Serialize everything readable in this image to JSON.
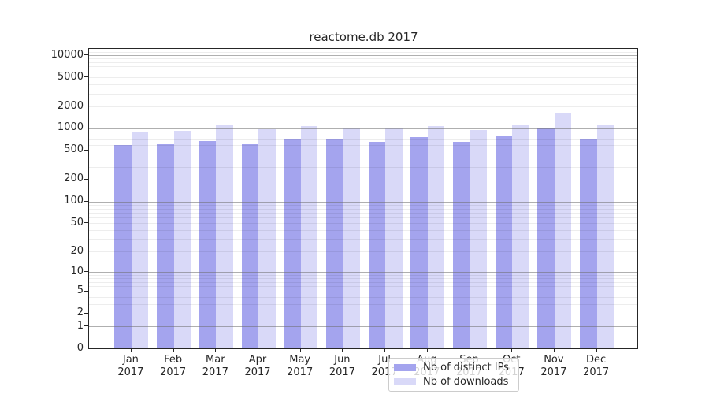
{
  "chart_data": {
    "type": "bar",
    "title": "reactome.db 2017",
    "categories": [
      "Jan 2017",
      "Feb 2017",
      "Mar 2017",
      "Apr 2017",
      "May 2017",
      "Jun 2017",
      "Jul 2017",
      "Aug 2017",
      "Sep 2017",
      "Oct 2017",
      "Nov 2017",
      "Dec 2017"
    ],
    "months": [
      {
        "month": "Jan",
        "year": "2017"
      },
      {
        "month": "Feb",
        "year": "2017"
      },
      {
        "month": "Mar",
        "year": "2017"
      },
      {
        "month": "Apr",
        "year": "2017"
      },
      {
        "month": "May",
        "year": "2017"
      },
      {
        "month": "Jun",
        "year": "2017"
      },
      {
        "month": "Jul",
        "year": "2017"
      },
      {
        "month": "Aug",
        "year": "2017"
      },
      {
        "month": "Sep",
        "year": "2017"
      },
      {
        "month": "Oct",
        "year": "2017"
      },
      {
        "month": "Nov",
        "year": "2017"
      },
      {
        "month": "Dec",
        "year": "2017"
      }
    ],
    "series": [
      {
        "name": "Nb of distinct IPs",
        "color": "#a4a4ee",
        "values": [
          595,
          615,
          665,
          610,
          700,
          705,
          650,
          760,
          650,
          780,
          1005,
          705
        ]
      },
      {
        "name": "Nb of downloads",
        "color": "#d9d9f8",
        "values": [
          885,
          925,
          1105,
          985,
          1065,
          1025,
          1000,
          1075,
          940,
          1140,
          1660,
          1100
        ]
      }
    ],
    "yscale": "log1p",
    "yticks": [
      0,
      1,
      2,
      5,
      10,
      20,
      50,
      100,
      200,
      500,
      1000,
      2000,
      5000,
      10000
    ],
    "ylim": [
      0,
      12200
    ],
    "xlabel": "",
    "ylabel": "",
    "grid": "both",
    "legend_position": "lower center"
  }
}
